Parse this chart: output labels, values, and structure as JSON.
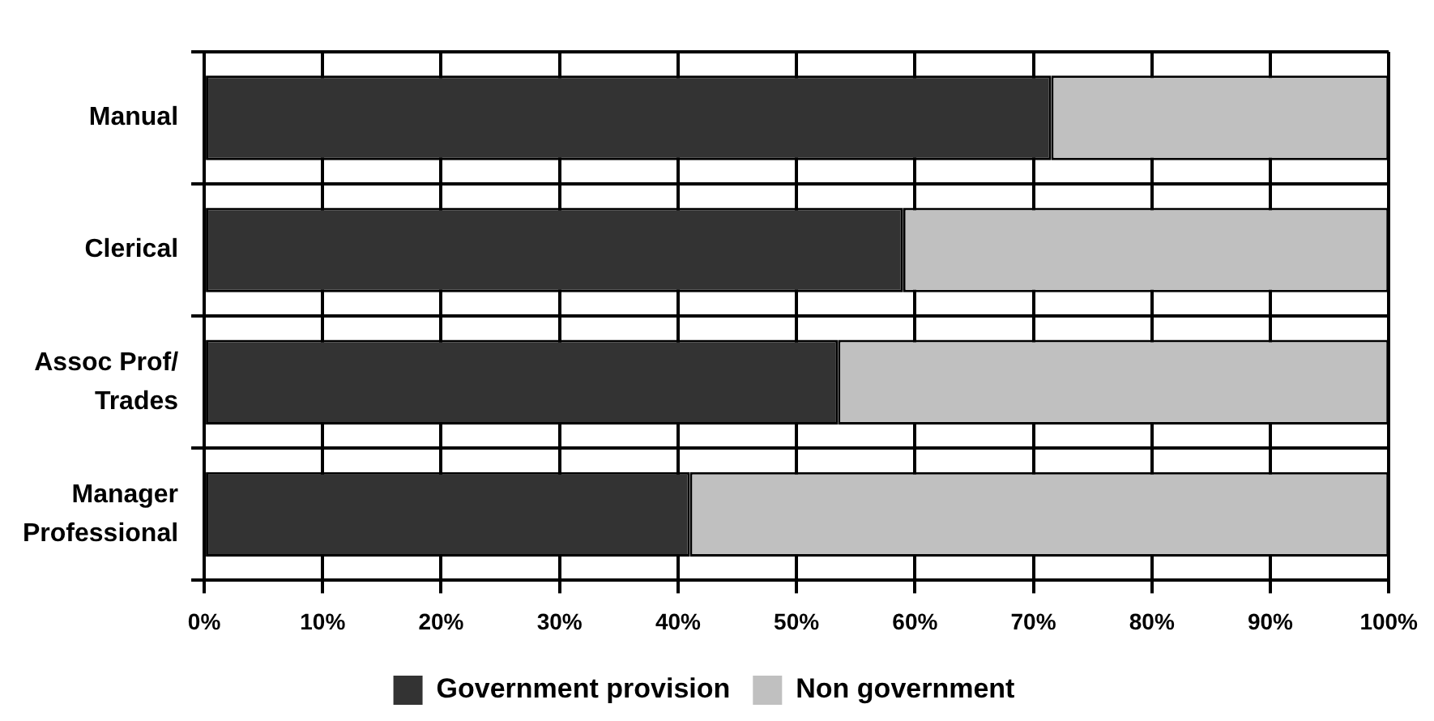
{
  "chart_data": {
    "type": "bar",
    "orientation": "horizontal",
    "stacked": true,
    "categories": [
      "Manual",
      "Clerical",
      "Assoc Prof/ Trades",
      "Manager Professional"
    ],
    "series": [
      {
        "name": "Government provision",
        "color": "#333333",
        "values": [
          71.5,
          59,
          53.5,
          41
        ]
      },
      {
        "name": "Non government",
        "color": "#c0c0c0",
        "values": [
          28.5,
          41,
          46.5,
          59
        ]
      }
    ],
    "xlim": [
      0,
      100
    ],
    "xticks": [
      {
        "value": 0,
        "label": "0%"
      },
      {
        "value": 10,
        "label": "10%"
      },
      {
        "value": 20,
        "label": "20%"
      },
      {
        "value": 30,
        "label": "30%"
      },
      {
        "value": 40,
        "label": "40%"
      },
      {
        "value": 50,
        "label": "50%"
      },
      {
        "value": 60,
        "label": "60%"
      },
      {
        "value": 70,
        "label": "70%"
      },
      {
        "value": 80,
        "label": "80%"
      },
      {
        "value": 90,
        "label": "90%"
      },
      {
        "value": 100,
        "label": "100%"
      }
    ],
    "grid": true,
    "legend": "bottom"
  }
}
